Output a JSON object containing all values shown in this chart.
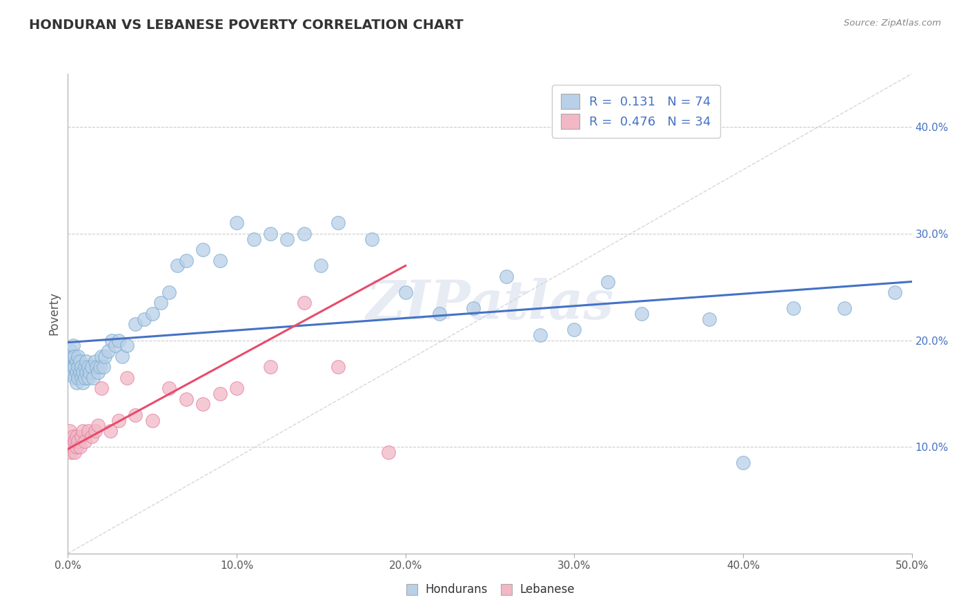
{
  "title": "HONDURAN VS LEBANESE POVERTY CORRELATION CHART",
  "source": "Source: ZipAtlas.com",
  "ylabel": "Poverty",
  "xlim": [
    0.0,
    0.5
  ],
  "ylim": [
    0.0,
    0.45
  ],
  "xticks": [
    0.0,
    0.1,
    0.2,
    0.3,
    0.4,
    0.5
  ],
  "xticklabels": [
    "0.0%",
    "10.0%",
    "20.0%",
    "30.0%",
    "40.0%",
    "50.0%"
  ],
  "yticks_right": [
    0.1,
    0.2,
    0.3,
    0.4
  ],
  "ytick_right_labels": [
    "10.0%",
    "20.0%",
    "30.0%",
    "40.0%"
  ],
  "grid_color": "#cccccc",
  "background_color": "#ffffff",
  "honduran_color": "#b8d0e8",
  "lebanese_color": "#f2b8c6",
  "honduran_line_color": "#4472c4",
  "lebanese_line_color": "#e84b6a",
  "diag_line_color": "#cccccc",
  "watermark": "ZIPatlas",
  "legend_honduran_R": "0.131",
  "legend_honduran_N": "74",
  "legend_lebanese_R": "0.476",
  "legend_lebanese_N": "34",
  "honduran_x": [
    0.001,
    0.001,
    0.002,
    0.002,
    0.003,
    0.003,
    0.003,
    0.004,
    0.004,
    0.004,
    0.005,
    0.005,
    0.005,
    0.006,
    0.006,
    0.006,
    0.007,
    0.007,
    0.008,
    0.008,
    0.009,
    0.009,
    0.01,
    0.01,
    0.011,
    0.011,
    0.012,
    0.012,
    0.013,
    0.014,
    0.015,
    0.016,
    0.017,
    0.018,
    0.019,
    0.02,
    0.021,
    0.022,
    0.024,
    0.026,
    0.028,
    0.03,
    0.032,
    0.035,
    0.04,
    0.045,
    0.05,
    0.055,
    0.06,
    0.065,
    0.07,
    0.08,
    0.09,
    0.1,
    0.11,
    0.12,
    0.13,
    0.14,
    0.15,
    0.16,
    0.18,
    0.2,
    0.22,
    0.24,
    0.26,
    0.28,
    0.3,
    0.32,
    0.34,
    0.38,
    0.4,
    0.43,
    0.46,
    0.49
  ],
  "honduran_y": [
    0.175,
    0.185,
    0.17,
    0.19,
    0.175,
    0.185,
    0.195,
    0.165,
    0.175,
    0.185,
    0.16,
    0.17,
    0.18,
    0.165,
    0.175,
    0.185,
    0.17,
    0.18,
    0.165,
    0.175,
    0.16,
    0.17,
    0.165,
    0.175,
    0.17,
    0.18,
    0.165,
    0.175,
    0.17,
    0.175,
    0.165,
    0.18,
    0.175,
    0.17,
    0.175,
    0.185,
    0.175,
    0.185,
    0.19,
    0.2,
    0.195,
    0.2,
    0.185,
    0.195,
    0.215,
    0.22,
    0.225,
    0.235,
    0.245,
    0.27,
    0.275,
    0.285,
    0.275,
    0.31,
    0.295,
    0.3,
    0.295,
    0.3,
    0.27,
    0.31,
    0.295,
    0.245,
    0.225,
    0.23,
    0.26,
    0.205,
    0.21,
    0.255,
    0.225,
    0.22,
    0.085,
    0.23,
    0.23,
    0.245
  ],
  "lebanese_x": [
    0.001,
    0.001,
    0.002,
    0.002,
    0.003,
    0.003,
    0.004,
    0.004,
    0.005,
    0.005,
    0.006,
    0.007,
    0.008,
    0.009,
    0.01,
    0.012,
    0.014,
    0.016,
    0.018,
    0.02,
    0.025,
    0.03,
    0.035,
    0.04,
    0.05,
    0.06,
    0.07,
    0.08,
    0.09,
    0.1,
    0.12,
    0.14,
    0.16,
    0.19
  ],
  "lebanese_y": [
    0.115,
    0.1,
    0.105,
    0.095,
    0.11,
    0.1,
    0.105,
    0.095,
    0.1,
    0.11,
    0.105,
    0.1,
    0.11,
    0.115,
    0.105,
    0.115,
    0.11,
    0.115,
    0.12,
    0.155,
    0.115,
    0.125,
    0.165,
    0.13,
    0.125,
    0.155,
    0.145,
    0.14,
    0.15,
    0.155,
    0.175,
    0.235,
    0.175,
    0.095
  ],
  "honduran_trend_x": [
    0.0,
    0.5
  ],
  "honduran_trend_y": [
    0.198,
    0.255
  ],
  "lebanese_trend_x": [
    0.0,
    0.2
  ],
  "lebanese_trend_y": [
    0.098,
    0.27
  ]
}
